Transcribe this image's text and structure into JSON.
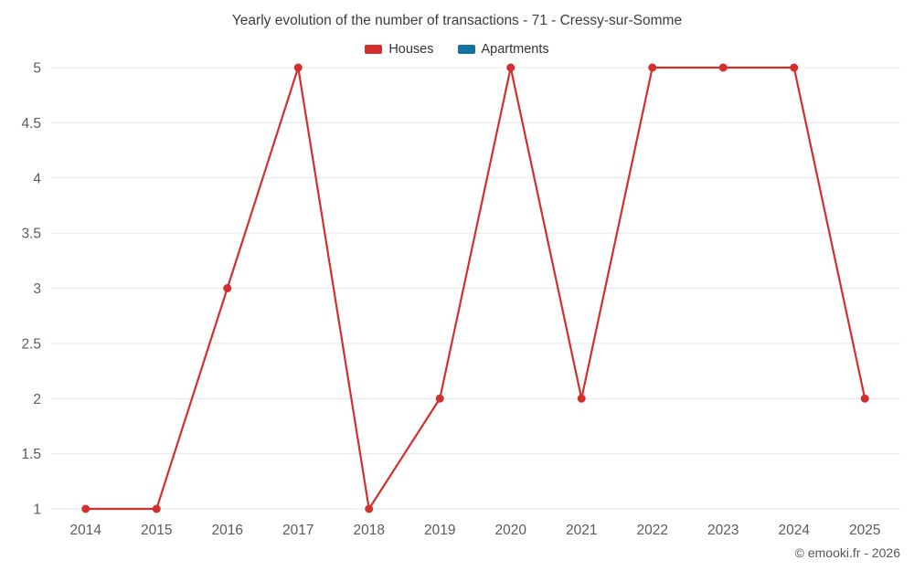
{
  "chart": {
    "title": "Yearly evolution of the number of transactions - 71 - Cressy-sur-Somme",
    "copyright": "© emooki.fr - 2026"
  },
  "chart_data": {
    "type": "line",
    "title": "Yearly evolution of the number of transactions - 71 - Cressy-sur-Somme",
    "categories": [
      "2014",
      "2015",
      "2016",
      "2017",
      "2018",
      "2019",
      "2020",
      "2021",
      "2022",
      "2023",
      "2024",
      "2025"
    ],
    "series": [
      {
        "name": "Houses",
        "color": "#d32f2f",
        "values": [
          1,
          1,
          3,
          5,
          1,
          2,
          5,
          2,
          5,
          5,
          5,
          2
        ]
      },
      {
        "name": "Apartments",
        "color": "#1673a1",
        "values": []
      }
    ],
    "ylim": [
      1,
      5
    ],
    "yticks": [
      1,
      1.5,
      2,
      2.5,
      3,
      3.5,
      4,
      4.5,
      5
    ],
    "grid": "horizontal",
    "legend_position": "top",
    "xlabel": "",
    "ylabel": "",
    "title_color": "#3c3c3c",
    "axis_label_color": "#5b5b5b",
    "grid_color": "#e6e6e6"
  }
}
